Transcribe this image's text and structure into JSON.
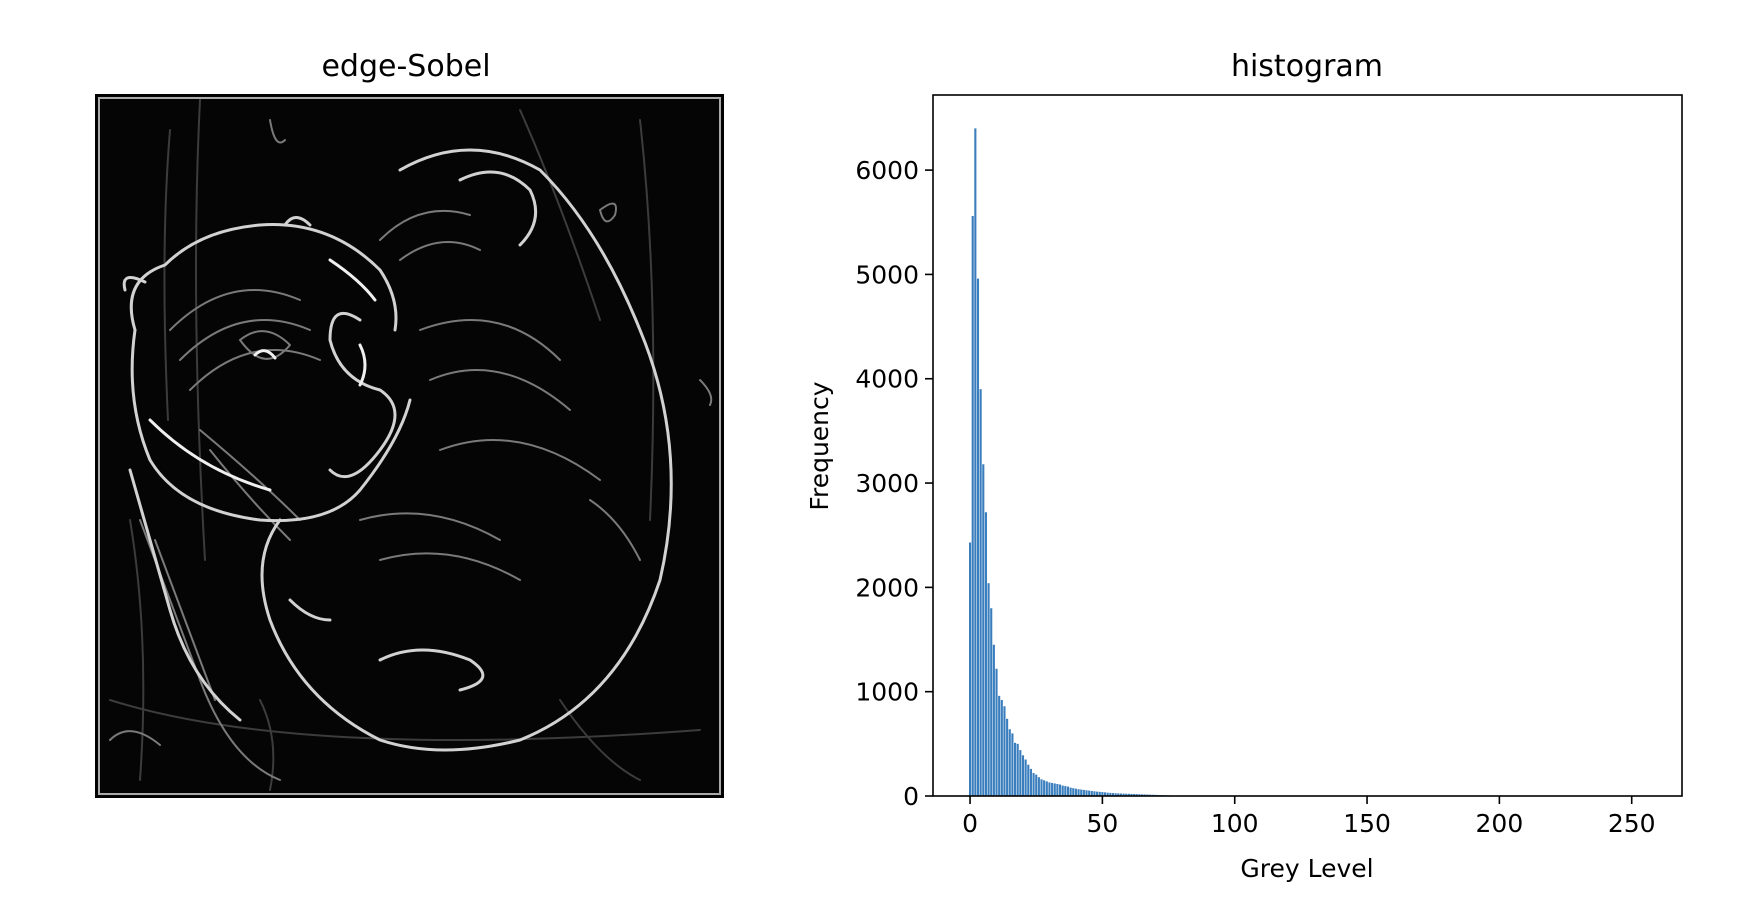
{
  "figure": {
    "panels": [
      {
        "title": "edge-Sobel",
        "image": "sobel-edge-cat-image"
      },
      {
        "title": "histogram"
      }
    ]
  },
  "colors": {
    "bar": "#3a7ebd",
    "axes": "#000000",
    "background": "#ffffff"
  },
  "chart_data": [
    {
      "type": "histogram",
      "title": "histogram",
      "xlabel": "Grey Level",
      "ylabel": "Frequency",
      "xlim": [
        -14,
        269
      ],
      "ylim": [
        0,
        6720
      ],
      "xticks": [
        0,
        50,
        100,
        150,
        200,
        250
      ],
      "yticks": [
        0,
        1000,
        2000,
        3000,
        4000,
        5000,
        6000
      ],
      "grid": false,
      "x": [
        0,
        1,
        2,
        3,
        4,
        5,
        6,
        7,
        8,
        9,
        10,
        11,
        12,
        13,
        14,
        15,
        16,
        17,
        18,
        19,
        20,
        21,
        22,
        23,
        24,
        25,
        26,
        27,
        28,
        29,
        30,
        31,
        32,
        33,
        34,
        35,
        36,
        37,
        38,
        39,
        40,
        41,
        42,
        43,
        44,
        45,
        46,
        47,
        48,
        49,
        50,
        51,
        52,
        53,
        54,
        55,
        56,
        57,
        58,
        59,
        60,
        61,
        62,
        63,
        64,
        65,
        66,
        67,
        68,
        69,
        70,
        71,
        72,
        73,
        74,
        75
      ],
      "values": [
        2430,
        5560,
        6400,
        4960,
        3900,
        3180,
        2720,
        2040,
        1800,
        1450,
        1220,
        960,
        920,
        860,
        740,
        640,
        600,
        510,
        500,
        440,
        390,
        350,
        300,
        260,
        220,
        205,
        180,
        160,
        150,
        140,
        130,
        125,
        120,
        115,
        110,
        100,
        95,
        90,
        80,
        75,
        70,
        65,
        62,
        58,
        55,
        52,
        48,
        45,
        42,
        40,
        38,
        35,
        32,
        30,
        28,
        26,
        25,
        24,
        23,
        22,
        21,
        20,
        19,
        18,
        17,
        16,
        15,
        14,
        13,
        12,
        11,
        10,
        9,
        8,
        7,
        6
      ]
    }
  ]
}
